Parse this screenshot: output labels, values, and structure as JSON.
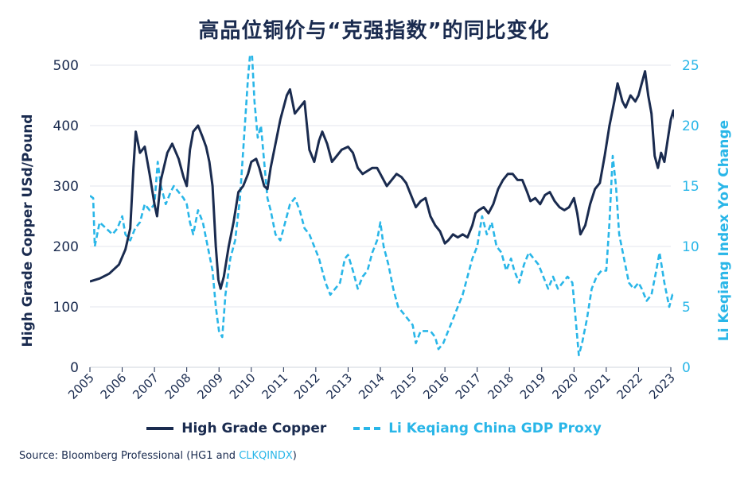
{
  "chart_data": {
    "type": "line",
    "title": "高品位铜价与“克强指数”的同比变化",
    "y_left": {
      "label": "High Grade Copper USd/Pound",
      "lim": [
        0,
        500
      ],
      "ticks": [
        "0",
        "100",
        "200",
        "300",
        "400",
        "500"
      ]
    },
    "y_right": {
      "label": "Li Keqiang Index YoY Change",
      "lim": [
        0,
        25
      ],
      "ticks": [
        "0",
        "5",
        "10",
        "15",
        "20",
        "25"
      ]
    },
    "x_ticks": [
      "2005",
      "2006",
      "2007",
      "2008",
      "2009",
      "2010",
      "2011",
      "2012",
      "2013",
      "2014",
      "2015",
      "2016",
      "2017",
      "2018",
      "2019",
      "2020",
      "2021",
      "2022",
      "2023"
    ],
    "series": [
      {
        "name": "High Grade Copper",
        "axis": "left",
        "color": "#1a2b4f",
        "style": "solid",
        "points": [
          [
            2005.0,
            142
          ],
          [
            2005.3,
            147
          ],
          [
            2005.6,
            155
          ],
          [
            2005.9,
            170
          ],
          [
            2006.1,
            195
          ],
          [
            2006.25,
            230
          ],
          [
            2006.35,
            330
          ],
          [
            2006.42,
            390
          ],
          [
            2006.55,
            355
          ],
          [
            2006.7,
            365
          ],
          [
            2006.85,
            320
          ],
          [
            2007.0,
            270
          ],
          [
            2007.08,
            250
          ],
          [
            2007.2,
            310
          ],
          [
            2007.4,
            355
          ],
          [
            2007.55,
            370
          ],
          [
            2007.75,
            345
          ],
          [
            2007.9,
            315
          ],
          [
            2008.0,
            300
          ],
          [
            2008.1,
            360
          ],
          [
            2008.2,
            390
          ],
          [
            2008.35,
            400
          ],
          [
            2008.5,
            380
          ],
          [
            2008.6,
            365
          ],
          [
            2008.7,
            340
          ],
          [
            2008.8,
            300
          ],
          [
            2008.9,
            200
          ],
          [
            2008.98,
            145
          ],
          [
            2009.05,
            130
          ],
          [
            2009.15,
            150
          ],
          [
            2009.3,
            200
          ],
          [
            2009.45,
            240
          ],
          [
            2009.6,
            290
          ],
          [
            2009.75,
            300
          ],
          [
            2009.9,
            320
          ],
          [
            2010.0,
            340
          ],
          [
            2010.15,
            345
          ],
          [
            2010.25,
            330
          ],
          [
            2010.4,
            300
          ],
          [
            2010.5,
            295
          ],
          [
            2010.6,
            330
          ],
          [
            2010.75,
            370
          ],
          [
            2010.9,
            410
          ],
          [
            2011.1,
            450
          ],
          [
            2011.2,
            460
          ],
          [
            2011.35,
            420
          ],
          [
            2011.5,
            430
          ],
          [
            2011.65,
            440
          ],
          [
            2011.8,
            360
          ],
          [
            2011.95,
            340
          ],
          [
            2012.1,
            375
          ],
          [
            2012.2,
            390
          ],
          [
            2012.35,
            370
          ],
          [
            2012.5,
            340
          ],
          [
            2012.65,
            350
          ],
          [
            2012.8,
            360
          ],
          [
            2013.0,
            365
          ],
          [
            2013.15,
            355
          ],
          [
            2013.3,
            330
          ],
          [
            2013.45,
            320
          ],
          [
            2013.6,
            325
          ],
          [
            2013.75,
            330
          ],
          [
            2013.9,
            330
          ],
          [
            2014.05,
            315
          ],
          [
            2014.2,
            300
          ],
          [
            2014.35,
            310
          ],
          [
            2014.5,
            320
          ],
          [
            2014.65,
            315
          ],
          [
            2014.8,
            305
          ],
          [
            2014.95,
            285
          ],
          [
            2015.1,
            265
          ],
          [
            2015.25,
            275
          ],
          [
            2015.4,
            280
          ],
          [
            2015.55,
            250
          ],
          [
            2015.7,
            235
          ],
          [
            2015.85,
            225
          ],
          [
            2016.0,
            205
          ],
          [
            2016.1,
            210
          ],
          [
            2016.25,
            220
          ],
          [
            2016.4,
            215
          ],
          [
            2016.55,
            220
          ],
          [
            2016.7,
            215
          ],
          [
            2016.85,
            235
          ],
          [
            2016.95,
            255
          ],
          [
            2017.05,
            260
          ],
          [
            2017.2,
            265
          ],
          [
            2017.35,
            255
          ],
          [
            2017.5,
            270
          ],
          [
            2017.65,
            295
          ],
          [
            2017.8,
            310
          ],
          [
            2017.95,
            320
          ],
          [
            2018.1,
            320
          ],
          [
            2018.25,
            310
          ],
          [
            2018.4,
            310
          ],
          [
            2018.55,
            290
          ],
          [
            2018.65,
            275
          ],
          [
            2018.8,
            280
          ],
          [
            2018.95,
            270
          ],
          [
            2019.1,
            285
          ],
          [
            2019.25,
            290
          ],
          [
            2019.4,
            275
          ],
          [
            2019.55,
            265
          ],
          [
            2019.7,
            260
          ],
          [
            2019.85,
            265
          ],
          [
            2020.0,
            280
          ],
          [
            2020.1,
            255
          ],
          [
            2020.2,
            220
          ],
          [
            2020.35,
            235
          ],
          [
            2020.5,
            270
          ],
          [
            2020.65,
            295
          ],
          [
            2020.8,
            305
          ],
          [
            2020.95,
            350
          ],
          [
            2021.1,
            400
          ],
          [
            2021.25,
            440
          ],
          [
            2021.35,
            470
          ],
          [
            2021.5,
            440
          ],
          [
            2021.6,
            430
          ],
          [
            2021.75,
            450
          ],
          [
            2021.9,
            440
          ],
          [
            2022.0,
            450
          ],
          [
            2022.1,
            470
          ],
          [
            2022.2,
            490
          ],
          [
            2022.3,
            450
          ],
          [
            2022.4,
            420
          ],
          [
            2022.5,
            350
          ],
          [
            2022.6,
            330
          ],
          [
            2022.7,
            355
          ],
          [
            2022.8,
            340
          ],
          [
            2022.9,
            375
          ],
          [
            2023.0,
            410
          ],
          [
            2023.08,
            425
          ],
          [
            2023.15,
            405
          ]
        ]
      },
      {
        "name": "Li Keqiang China GDP Proxy",
        "axis": "right",
        "color": "#29b6e8",
        "style": "dashed",
        "points": [
          [
            2005.0,
            14.2
          ],
          [
            2005.1,
            14.0
          ],
          [
            2005.15,
            10
          ],
          [
            2005.3,
            12
          ],
          [
            2005.5,
            11.5
          ],
          [
            2005.7,
            11.0
          ],
          [
            2005.85,
            11.5
          ],
          [
            2006.0,
            12.5
          ],
          [
            2006.1,
            11
          ],
          [
            2006.25,
            10.5
          ],
          [
            2006.4,
            11.5
          ],
          [
            2006.55,
            12
          ],
          [
            2006.7,
            13.5
          ],
          [
            2006.85,
            13
          ],
          [
            2007.0,
            13.5
          ],
          [
            2007.1,
            17
          ],
          [
            2007.2,
            15
          ],
          [
            2007.35,
            13.5
          ],
          [
            2007.5,
            14.5
          ],
          [
            2007.6,
            15
          ],
          [
            2007.75,
            14.5
          ],
          [
            2007.9,
            14
          ],
          [
            2008.0,
            13.5
          ],
          [
            2008.1,
            12
          ],
          [
            2008.2,
            11
          ],
          [
            2008.35,
            13
          ],
          [
            2008.5,
            12
          ],
          [
            2008.65,
            10
          ],
          [
            2008.8,
            8
          ],
          [
            2008.9,
            5
          ],
          [
            2009.0,
            3
          ],
          [
            2009.1,
            2.5
          ],
          [
            2009.2,
            6
          ],
          [
            2009.35,
            9
          ],
          [
            2009.5,
            10.5
          ],
          [
            2009.65,
            14
          ],
          [
            2009.8,
            20
          ],
          [
            2009.9,
            24
          ],
          [
            2010.0,
            27
          ],
          [
            2010.1,
            22
          ],
          [
            2010.2,
            19
          ],
          [
            2010.3,
            20
          ],
          [
            2010.4,
            17
          ],
          [
            2010.5,
            14
          ],
          [
            2010.6,
            13
          ],
          [
            2010.75,
            11
          ],
          [
            2010.9,
            10.5
          ],
          [
            2011.05,
            12
          ],
          [
            2011.2,
            13.5
          ],
          [
            2011.35,
            14
          ],
          [
            2011.5,
            13
          ],
          [
            2011.65,
            11.5
          ],
          [
            2011.8,
            11
          ],
          [
            2011.95,
            10
          ],
          [
            2012.1,
            9
          ],
          [
            2012.3,
            7
          ],
          [
            2012.45,
            6
          ],
          [
            2012.6,
            6.5
          ],
          [
            2012.75,
            7
          ],
          [
            2012.9,
            9
          ],
          [
            2013.0,
            9.3
          ],
          [
            2013.15,
            8
          ],
          [
            2013.3,
            6.5
          ],
          [
            2013.45,
            7.5
          ],
          [
            2013.6,
            8
          ],
          [
            2013.75,
            9.5
          ],
          [
            2013.9,
            10.5
          ],
          [
            2014.0,
            12
          ],
          [
            2014.1,
            10
          ],
          [
            2014.25,
            8.5
          ],
          [
            2014.4,
            6.5
          ],
          [
            2014.55,
            5
          ],
          [
            2014.7,
            4.5
          ],
          [
            2014.85,
            4
          ],
          [
            2015.0,
            3.5
          ],
          [
            2015.1,
            2
          ],
          [
            2015.25,
            3
          ],
          [
            2015.4,
            3
          ],
          [
            2015.55,
            3
          ],
          [
            2015.7,
            2.5
          ],
          [
            2015.8,
            1.5
          ],
          [
            2015.95,
            2
          ],
          [
            2016.1,
            3
          ],
          [
            2016.25,
            4
          ],
          [
            2016.4,
            5
          ],
          [
            2016.55,
            6
          ],
          [
            2016.7,
            7.5
          ],
          [
            2016.85,
            9
          ],
          [
            2017.0,
            10
          ],
          [
            2017.15,
            12.5
          ],
          [
            2017.3,
            11
          ],
          [
            2017.45,
            12
          ],
          [
            2017.6,
            10
          ],
          [
            2017.75,
            9.5
          ],
          [
            2017.9,
            8
          ],
          [
            2018.05,
            9
          ],
          [
            2018.15,
            8
          ],
          [
            2018.3,
            7
          ],
          [
            2018.45,
            8.5
          ],
          [
            2018.6,
            9.5
          ],
          [
            2018.75,
            9
          ],
          [
            2018.9,
            8.5
          ],
          [
            2019.05,
            7.5
          ],
          [
            2019.2,
            6.5
          ],
          [
            2019.35,
            7.5
          ],
          [
            2019.5,
            6.5
          ],
          [
            2019.65,
            7
          ],
          [
            2019.8,
            7.5
          ],
          [
            2019.95,
            7
          ],
          [
            2020.05,
            4
          ],
          [
            2020.15,
            1
          ],
          [
            2020.25,
            2
          ],
          [
            2020.4,
            4
          ],
          [
            2020.55,
            6.5
          ],
          [
            2020.7,
            7.5
          ],
          [
            2020.85,
            8
          ],
          [
            2021.0,
            8
          ],
          [
            2021.1,
            12
          ],
          [
            2021.2,
            17.5
          ],
          [
            2021.3,
            15
          ],
          [
            2021.4,
            11
          ],
          [
            2021.55,
            9
          ],
          [
            2021.7,
            7
          ],
          [
            2021.85,
            6.5
          ],
          [
            2022.0,
            7
          ],
          [
            2022.1,
            6.5
          ],
          [
            2022.25,
            5.5
          ],
          [
            2022.4,
            6
          ],
          [
            2022.55,
            8
          ],
          [
            2022.65,
            9.5
          ],
          [
            2022.8,
            7
          ],
          [
            2022.95,
            5
          ],
          [
            2023.05,
            6
          ],
          [
            2023.15,
            5.8
          ]
        ]
      }
    ],
    "grid": "horizontal",
    "legend_position": "bottom-center"
  },
  "source": {
    "prefix": "Source: Bloomberg Professional (HG1 and ",
    "highlight": "CLKQINDX",
    "suffix": ")"
  }
}
